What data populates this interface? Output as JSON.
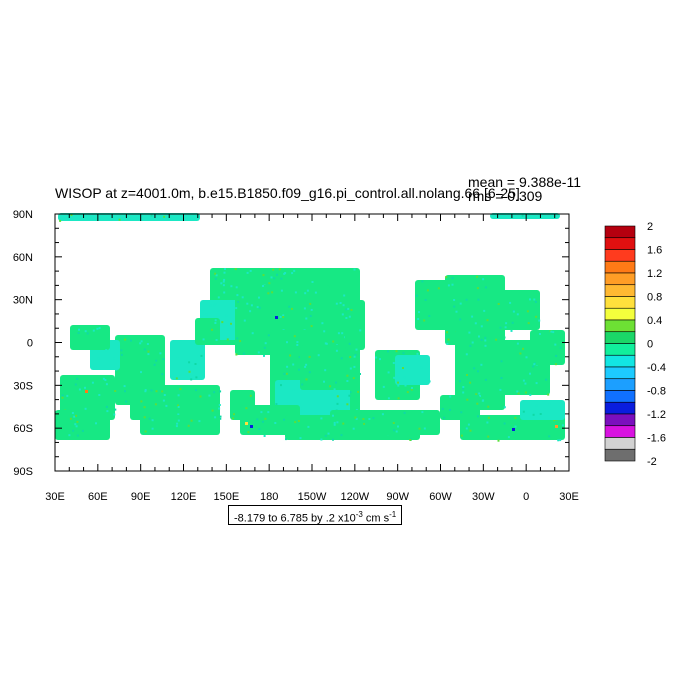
{
  "chart_data": {
    "type": "heatmap",
    "title": "WISOP at z=4001.0m, b.e15.B1850.f09_g16.pi_control.all.nolang.66 [6-25]",
    "stats": {
      "mean": "mean = 9.388e-11",
      "rms": "rms = 0.309"
    },
    "x_ticks": [
      "30E",
      "60E",
      "90E",
      "120E",
      "150E",
      "180",
      "150W",
      "120W",
      "90W",
      "60W",
      "30W",
      "0",
      "30E"
    ],
    "y_ticks": [
      "90N",
      "60N",
      "30N",
      "0",
      "30S",
      "60S",
      "90S"
    ],
    "lon_range": [
      30,
      390
    ],
    "lat_range": [
      -90,
      90
    ],
    "colorbar": {
      "labels": [
        "2",
        "1.6",
        "1.2",
        "0.8",
        "0.4",
        "0",
        "-0.4",
        "-0.8",
        "-1.2",
        "-1.6",
        "-2"
      ],
      "colors": [
        "#b5000f",
        "#e01010",
        "#ff3b1e",
        "#ff7a16",
        "#ff9d26",
        "#ffb932",
        "#ffe03c",
        "#f4ff3c",
        "#6de034",
        "#1bd768",
        "#11ef9c",
        "#12e6e3",
        "#1dcbff",
        "#1c9fff",
        "#1070ff",
        "#0a1dde",
        "#7b0fbe",
        "#d812e0",
        "#d2d2d2",
        "#6e6e6e"
      ],
      "field_colors": {
        "main": "#17e884",
        "secondary": "#1be8c4",
        "tertiary": "#5ae03a"
      }
    },
    "range_text_main": "-8.179 to 6.785 by .2 x10",
    "range_text_exp": "-3",
    "range_text_units": " cm s",
    "range_text_units_exp": "-1"
  }
}
